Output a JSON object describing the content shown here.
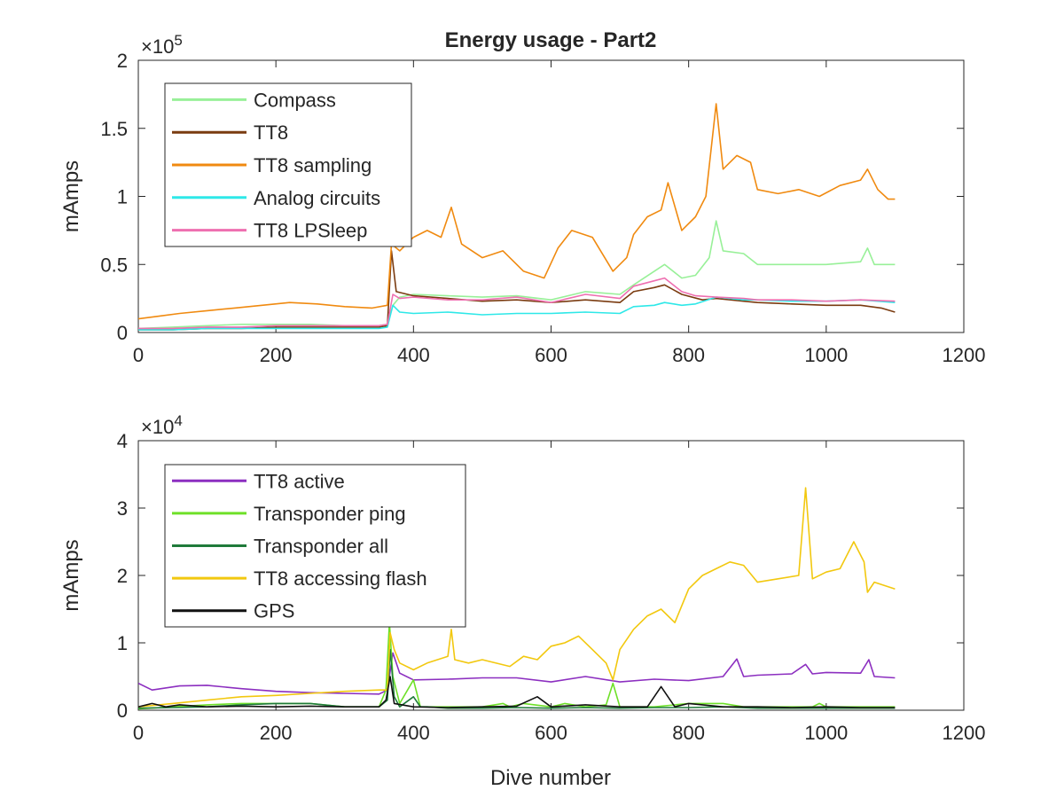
{
  "title": "Energy usage - Part2",
  "xlabel": "Dive number",
  "chart_data": [
    {
      "type": "line",
      "title": "Energy usage - Part2",
      "xlabel": "",
      "ylabel": "mAmps",
      "multiplier": "×10",
      "exponent": "5",
      "xlim": [
        0,
        1200
      ],
      "ylim": [
        0,
        2
      ],
      "xticks": [
        "0",
        "200",
        "400",
        "600",
        "800",
        "1000",
        "1200"
      ],
      "yticks": [
        "0",
        "0.5",
        "1",
        "1.5",
        "2"
      ],
      "grid": false,
      "legend_position": "top-left",
      "series": [
        {
          "name": "Compass",
          "color": "#98f098",
          "x": [
            0,
            50,
            100,
            150,
            200,
            250,
            300,
            350,
            362,
            370,
            380,
            400,
            450,
            500,
            550,
            600,
            650,
            700,
            720,
            750,
            765,
            790,
            810,
            830,
            840,
            850,
            880,
            900,
            950,
            1000,
            1050,
            1060,
            1070,
            1100
          ],
          "y": [
            0.03,
            0.04,
            0.05,
            0.06,
            0.06,
            0.06,
            0.05,
            0.05,
            0.06,
            0.2,
            0.26,
            0.28,
            0.27,
            0.26,
            0.27,
            0.24,
            0.3,
            0.28,
            0.35,
            0.45,
            0.5,
            0.4,
            0.42,
            0.55,
            0.82,
            0.6,
            0.58,
            0.5,
            0.5,
            0.5,
            0.52,
            0.62,
            0.5,
            0.5
          ]
        },
        {
          "name": "TT8",
          "color": "#7a3b10",
          "x": [
            0,
            50,
            100,
            150,
            200,
            250,
            300,
            350,
            362,
            368,
            375,
            400,
            450,
            500,
            550,
            600,
            650,
            700,
            720,
            750,
            765,
            790,
            820,
            840,
            880,
            900,
            950,
            1000,
            1050,
            1080,
            1100
          ],
          "y": [
            0.02,
            0.02,
            0.03,
            0.03,
            0.04,
            0.04,
            0.04,
            0.04,
            0.05,
            0.6,
            0.3,
            0.27,
            0.25,
            0.23,
            0.24,
            0.22,
            0.24,
            0.22,
            0.3,
            0.33,
            0.35,
            0.28,
            0.24,
            0.25,
            0.23,
            0.22,
            0.21,
            0.2,
            0.2,
            0.18,
            0.15
          ]
        },
        {
          "name": "TT8 sampling",
          "color": "#f08a10",
          "x": [
            0,
            30,
            60,
            100,
            140,
            180,
            220,
            260,
            300,
            340,
            362,
            368,
            380,
            400,
            420,
            440,
            455,
            470,
            500,
            530,
            560,
            590,
            610,
            630,
            660,
            690,
            710,
            720,
            740,
            760,
            770,
            790,
            810,
            825,
            840,
            850,
            870,
            890,
            900,
            930,
            960,
            990,
            1020,
            1050,
            1060,
            1075,
            1090,
            1100
          ],
          "y": [
            0.1,
            0.12,
            0.14,
            0.16,
            0.18,
            0.2,
            0.22,
            0.21,
            0.19,
            0.18,
            0.2,
            0.65,
            0.6,
            0.7,
            0.75,
            0.7,
            0.92,
            0.65,
            0.55,
            0.6,
            0.45,
            0.4,
            0.62,
            0.75,
            0.7,
            0.45,
            0.55,
            0.72,
            0.85,
            0.9,
            1.1,
            0.75,
            0.85,
            1.0,
            1.68,
            1.2,
            1.3,
            1.25,
            1.05,
            1.02,
            1.05,
            1.0,
            1.08,
            1.12,
            1.2,
            1.05,
            0.98,
            0.98
          ]
        },
        {
          "name": "Analog circuits",
          "color": "#2ee8e8",
          "x": [
            0,
            50,
            100,
            150,
            200,
            250,
            300,
            350,
            362,
            370,
            380,
            400,
            450,
            500,
            550,
            600,
            650,
            700,
            720,
            750,
            765,
            790,
            810,
            840,
            880,
            900,
            950,
            1000,
            1050,
            1100
          ],
          "y": [
            0.02,
            0.02,
            0.03,
            0.03,
            0.03,
            0.03,
            0.03,
            0.03,
            0.04,
            0.2,
            0.15,
            0.14,
            0.15,
            0.13,
            0.14,
            0.14,
            0.15,
            0.14,
            0.19,
            0.2,
            0.22,
            0.2,
            0.21,
            0.26,
            0.24,
            0.24,
            0.23,
            0.23,
            0.24,
            0.22
          ]
        },
        {
          "name": "TT8 LPSleep",
          "color": "#ee6fb0",
          "x": [
            0,
            50,
            100,
            150,
            200,
            250,
            300,
            350,
            362,
            370,
            380,
            400,
            450,
            500,
            550,
            600,
            650,
            700,
            720,
            750,
            765,
            790,
            810,
            840,
            880,
            900,
            950,
            1000,
            1050,
            1100
          ],
          "y": [
            0.03,
            0.03,
            0.04,
            0.04,
            0.05,
            0.05,
            0.05,
            0.05,
            0.06,
            0.28,
            0.25,
            0.26,
            0.24,
            0.24,
            0.26,
            0.22,
            0.28,
            0.25,
            0.34,
            0.38,
            0.4,
            0.3,
            0.27,
            0.26,
            0.25,
            0.24,
            0.24,
            0.23,
            0.24,
            0.23
          ]
        }
      ]
    },
    {
      "type": "line",
      "title": "",
      "xlabel": "Dive number",
      "ylabel": "mAmps",
      "multiplier": "×10",
      "exponent": "4",
      "xlim": [
        0,
        1200
      ],
      "ylim": [
        0,
        4
      ],
      "xticks": [
        "0",
        "200",
        "400",
        "600",
        "800",
        "1000",
        "1200"
      ],
      "yticks": [
        "0",
        "1",
        "2",
        "3",
        "4"
      ],
      "grid": false,
      "legend_position": "top-left",
      "series": [
        {
          "name": "TT8 active",
          "color": "#8c2fc0",
          "x": [
            0,
            20,
            60,
            100,
            150,
            200,
            250,
            300,
            350,
            362,
            370,
            380,
            400,
            450,
            500,
            550,
            600,
            650,
            700,
            750,
            800,
            850,
            870,
            880,
            900,
            950,
            970,
            980,
            1000,
            1050,
            1062,
            1070,
            1100
          ],
          "y": [
            0.4,
            0.3,
            0.36,
            0.37,
            0.32,
            0.28,
            0.26,
            0.25,
            0.24,
            0.3,
            0.85,
            0.55,
            0.45,
            0.46,
            0.48,
            0.48,
            0.42,
            0.5,
            0.42,
            0.46,
            0.44,
            0.5,
            0.76,
            0.5,
            0.52,
            0.54,
            0.68,
            0.54,
            0.56,
            0.55,
            0.75,
            0.5,
            0.48
          ]
        },
        {
          "name": "Transponder ping",
          "color": "#6ee028",
          "x": [
            0,
            50,
            100,
            150,
            200,
            250,
            300,
            350,
            360,
            365,
            370,
            380,
            400,
            410,
            420,
            450,
            500,
            530,
            540,
            560,
            600,
            620,
            650,
            680,
            690,
            700,
            750,
            800,
            850,
            880,
            900,
            950,
            980,
            990,
            1000,
            1050,
            1100
          ],
          "y": [
            0.02,
            0.05,
            0.08,
            0.1,
            0.1,
            0.1,
            0.05,
            0.05,
            0.3,
            1.3,
            0.5,
            0.1,
            0.45,
            0.05,
            0.05,
            0.05,
            0.05,
            0.1,
            0.05,
            0.1,
            0.05,
            0.1,
            0.05,
            0.08,
            0.4,
            0.05,
            0.05,
            0.1,
            0.1,
            0.05,
            0.05,
            0.05,
            0.05,
            0.1,
            0.05,
            0.05,
            0.05
          ]
        },
        {
          "name": "Transponder all",
          "color": "#1f7a3a",
          "x": [
            0,
            50,
            100,
            150,
            200,
            250,
            300,
            350,
            362,
            366,
            372,
            380,
            400,
            410,
            420,
            450,
            500,
            550,
            600,
            650,
            700,
            750,
            800,
            850,
            900,
            950,
            1000,
            1050,
            1100
          ],
          "y": [
            0.03,
            0.04,
            0.05,
            0.08,
            0.1,
            0.1,
            0.05,
            0.05,
            0.15,
            0.9,
            0.2,
            0.05,
            0.2,
            0.05,
            0.05,
            0.03,
            0.03,
            0.04,
            0.03,
            0.04,
            0.03,
            0.04,
            0.04,
            0.05,
            0.03,
            0.03,
            0.03,
            0.03,
            0.03
          ]
        },
        {
          "name": "TT8 accessing flash",
          "color": "#f2c80f",
          "x": [
            0,
            50,
            100,
            150,
            200,
            250,
            300,
            350,
            362,
            366,
            372,
            380,
            400,
            420,
            450,
            455,
            460,
            480,
            500,
            540,
            560,
            580,
            600,
            620,
            640,
            660,
            680,
            690,
            700,
            720,
            740,
            760,
            780,
            800,
            820,
            840,
            860,
            880,
            900,
            930,
            960,
            970,
            980,
            1000,
            1020,
            1040,
            1055,
            1060,
            1070,
            1100
          ],
          "y": [
            0.05,
            0.1,
            0.15,
            0.2,
            0.22,
            0.25,
            0.28,
            0.3,
            0.3,
            1.15,
            0.9,
            0.7,
            0.6,
            0.7,
            0.8,
            1.2,
            0.75,
            0.7,
            0.75,
            0.65,
            0.8,
            0.75,
            0.95,
            1.0,
            1.1,
            0.9,
            0.7,
            0.45,
            0.9,
            1.2,
            1.4,
            1.5,
            1.3,
            1.8,
            2.0,
            2.1,
            2.2,
            2.15,
            1.9,
            1.95,
            2.0,
            3.3,
            1.95,
            2.05,
            2.1,
            2.5,
            2.2,
            1.75,
            1.9,
            1.8
          ]
        },
        {
          "name": "GPS",
          "color": "#111111",
          "x": [
            0,
            20,
            40,
            60,
            100,
            150,
            200,
            250,
            300,
            350,
            360,
            366,
            372,
            400,
            450,
            500,
            550,
            580,
            600,
            650,
            700,
            740,
            760,
            780,
            800,
            850,
            900,
            950,
            1000,
            1050,
            1100
          ],
          "y": [
            0.05,
            0.1,
            0.05,
            0.08,
            0.05,
            0.06,
            0.05,
            0.06,
            0.05,
            0.05,
            0.15,
            0.5,
            0.1,
            0.05,
            0.04,
            0.05,
            0.06,
            0.2,
            0.05,
            0.08,
            0.05,
            0.05,
            0.35,
            0.05,
            0.1,
            0.05,
            0.05,
            0.04,
            0.05,
            0.04,
            0.04
          ]
        }
      ]
    }
  ]
}
